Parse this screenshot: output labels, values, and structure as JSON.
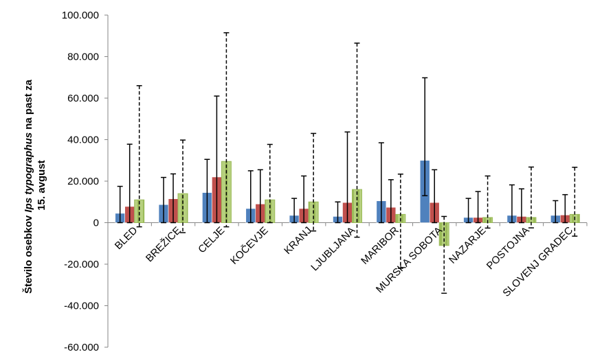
{
  "chart_data": {
    "type": "bar",
    "ylabel_parts": [
      "Število osebkov ",
      "Ips typographus",
      " na past za",
      "15. avgust"
    ],
    "ylim": [
      -60000,
      100000
    ],
    "ytick_step": 20000,
    "ytick_labels": [
      "-60.000",
      "-40.000",
      "-20.000",
      "0",
      "20.000",
      "40.000",
      "60.000",
      "80.000",
      "100.000"
    ],
    "grid": false,
    "legend": "none",
    "categories": [
      "BLED",
      "BREŽICE",
      "CELJE",
      "KOČEVJE",
      "KRANJ",
      "LJUBLJANA",
      "MARIBOR",
      "MURSKA SOBOTA",
      "NAZARJE",
      "POSTOJNA",
      "SLOVENJ GRADEC"
    ],
    "series": [
      {
        "color": "#4f81bd",
        "pattern": "solid",
        "error_style": "solid",
        "values": [
          4500,
          8700,
          14500,
          6800,
          3500,
          3000,
          10500,
          30000,
          2500,
          3500,
          3500
        ],
        "err_low": [
          0,
          0,
          0,
          0,
          0,
          0,
          0,
          13000,
          0,
          0,
          0
        ],
        "err_high": [
          17500,
          21800,
          30500,
          25000,
          11700,
          10000,
          38500,
          69800,
          11700,
          18200,
          10600
        ]
      },
      {
        "color": "#c0504d",
        "pattern": "solid",
        "error_style": "solid",
        "values": [
          7800,
          11500,
          22000,
          9000,
          6800,
          9700,
          7400,
          9700,
          2500,
          3000,
          3700
        ],
        "err_low": [
          0,
          0,
          0,
          0,
          0,
          0,
          0,
          0,
          0,
          0,
          0
        ],
        "err_high": [
          37800,
          23500,
          61000,
          25500,
          22500,
          43700,
          20700,
          25500,
          15000,
          16300,
          13500
        ]
      },
      {
        "color": "#9bbb59",
        "pattern": "dashed",
        "error_style": "dashed",
        "values": [
          11000,
          14000,
          29500,
          11000,
          10000,
          16000,
          4000,
          -11000,
          2500,
          2500,
          4000
        ],
        "err_low": [
          -2000,
          -4800,
          -2000,
          0,
          -4000,
          -7000,
          -22000,
          -34000,
          -2600,
          -2500,
          -6500
        ],
        "err_high": [
          66000,
          39800,
          91500,
          37700,
          43000,
          86500,
          23400,
          3000,
          22500,
          26800,
          26700
        ]
      }
    ]
  }
}
